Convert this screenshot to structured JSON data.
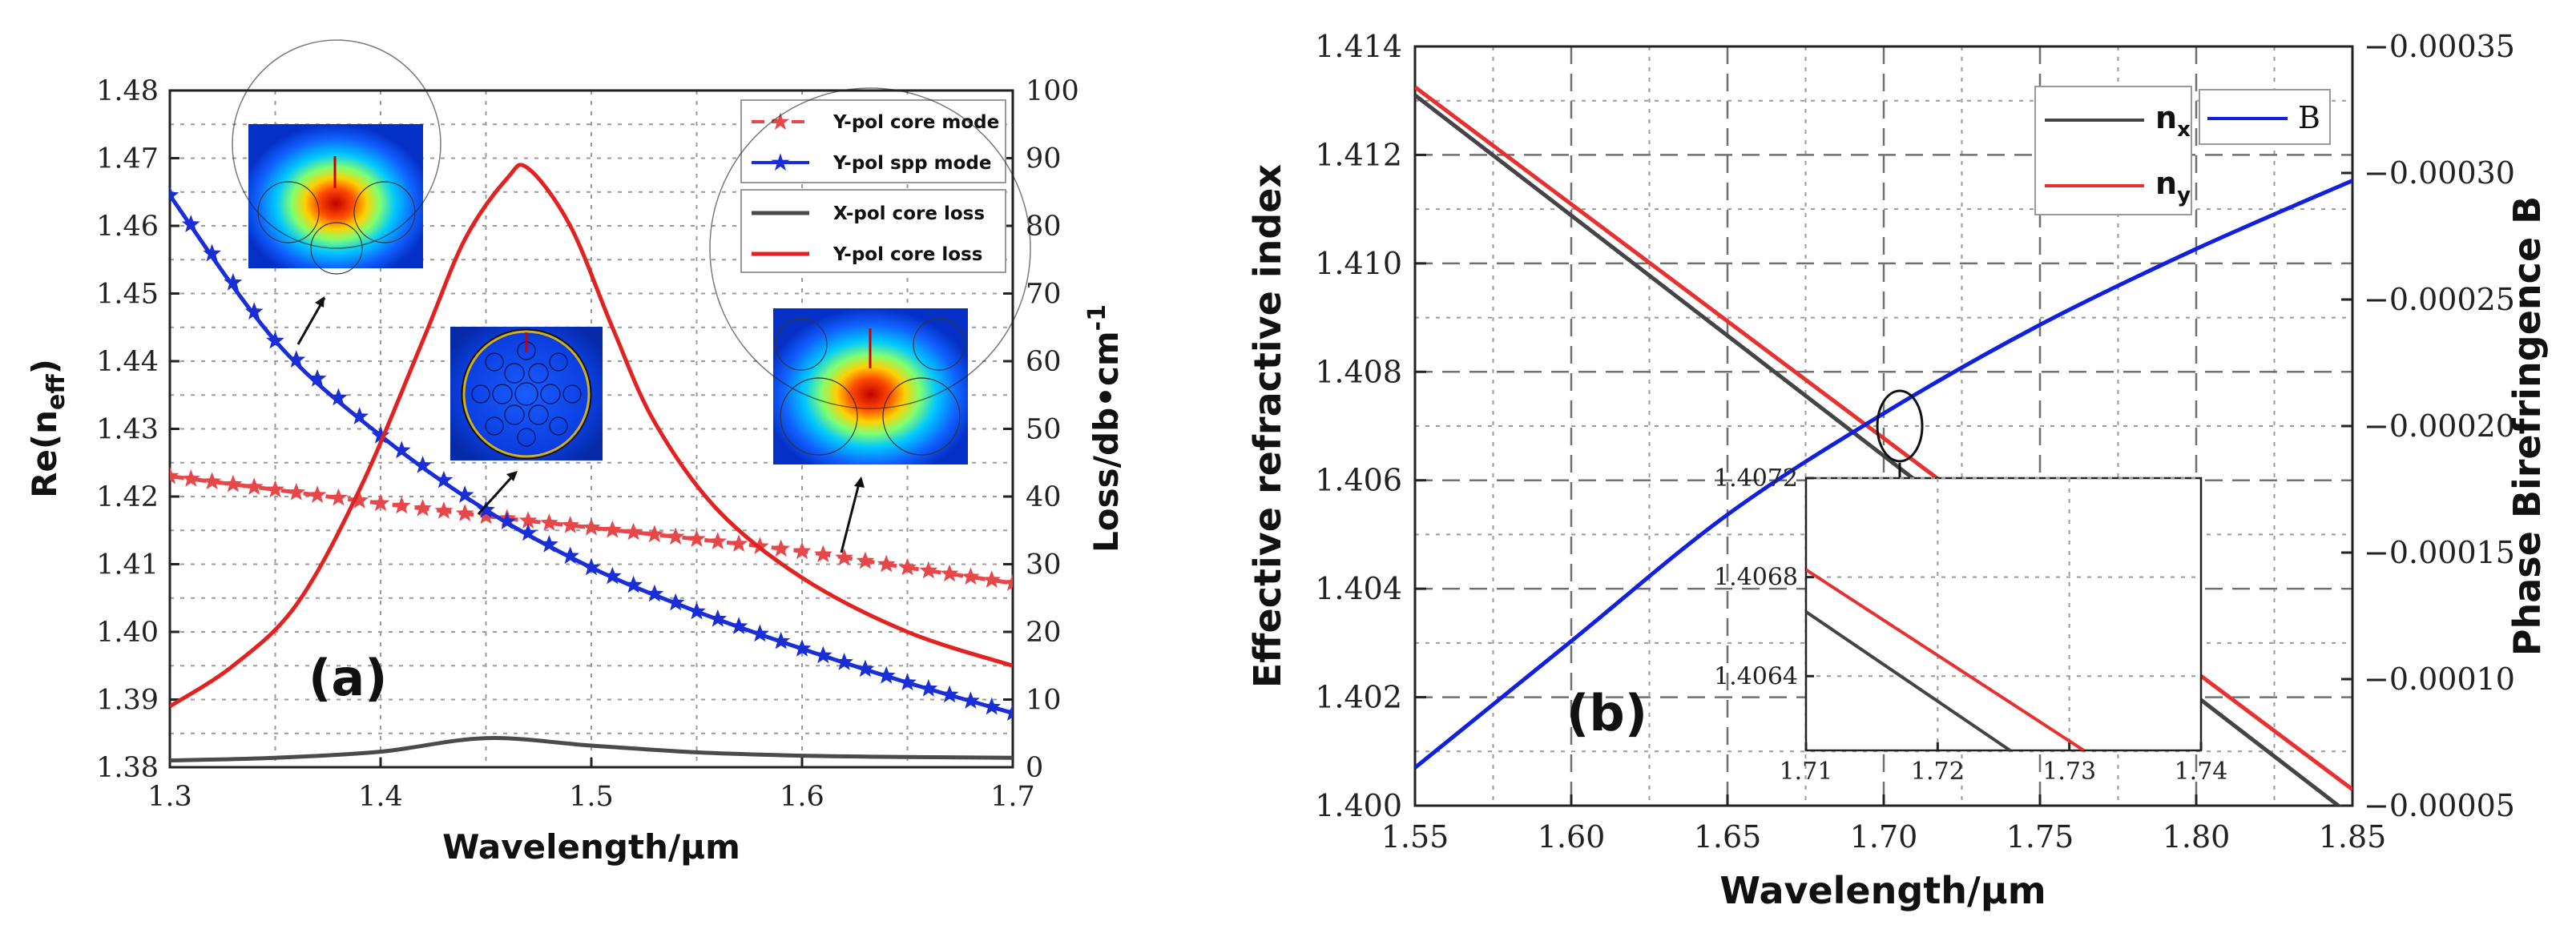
{
  "chart_data": [
    {
      "type": "line",
      "panel_label": "(a)",
      "xlabel": "Wavelength/μm",
      "ylabel_left": "Re(n",
      "ylabel_left_sub": "eff",
      "ylabel_left_close": ")",
      "ylabel_right": "Loss/db•cm",
      "ylabel_right_sup": "-1",
      "xlim": [
        1.3,
        1.7
      ],
      "ylim_left": [
        1.38,
        1.48
      ],
      "ylim_right": [
        0,
        100
      ],
      "x_ticks": [
        "1.3",
        "1.4",
        "1.5",
        "1.6",
        "1.7"
      ],
      "y_ticks_left": [
        "1.38",
        "1.39",
        "1.40",
        "1.41",
        "1.42",
        "1.43",
        "1.44",
        "1.45",
        "1.46",
        "1.47",
        "1.48"
      ],
      "y_ticks_right": [
        "0",
        "10",
        "20",
        "30",
        "40",
        "50",
        "60",
        "70",
        "80",
        "90",
        "100"
      ],
      "grid": true,
      "legend_position": "top-right",
      "series": [
        {
          "name": "Y-pol core mode",
          "axis": "left",
          "color": "#e8474a",
          "style": "dashed-star",
          "x": [
            1.3,
            1.35,
            1.4,
            1.45,
            1.5,
            1.55,
            1.6,
            1.65,
            1.7
          ],
          "values": [
            1.423,
            1.421,
            1.419,
            1.4171,
            1.4154,
            1.4137,
            1.4119,
            1.4095,
            1.4072
          ]
        },
        {
          "name": "Y-pol spp mode",
          "axis": "left",
          "color": "#1a2ed8",
          "style": "solid-star",
          "x": [
            1.3,
            1.35,
            1.4,
            1.45,
            1.5,
            1.55,
            1.6,
            1.65,
            1.7
          ],
          "values": [
            1.4645,
            1.443,
            1.429,
            1.418,
            1.4095,
            1.403,
            1.3975,
            1.3925,
            1.388
          ]
        },
        {
          "name": "X-pol core loss",
          "axis": "right",
          "color": "#4a4a4a",
          "style": "solid",
          "x": [
            1.3,
            1.35,
            1.4,
            1.45,
            1.5,
            1.55,
            1.6,
            1.65,
            1.7
          ],
          "values": [
            1.0,
            1.4,
            2.3,
            4.3,
            3.2,
            2.2,
            1.7,
            1.5,
            1.4
          ]
        },
        {
          "name": "Y-pol core loss",
          "axis": "right",
          "color": "#e32121",
          "style": "solid",
          "x": [
            1.3,
            1.33,
            1.36,
            1.39,
            1.42,
            1.44,
            1.46,
            1.47,
            1.49,
            1.51,
            1.53,
            1.56,
            1.6,
            1.65,
            1.7
          ],
          "values": [
            9,
            15,
            24,
            41,
            63,
            78,
            87,
            88.5,
            80,
            65,
            51,
            38,
            28,
            20,
            15
          ]
        }
      ],
      "insets": [
        {
          "description_icon": "mode-field-heatmap-icon"
        },
        {
          "description_icon": "mode-field-heatmap-icon"
        },
        {
          "description_icon": "mode-field-heatmap-icon"
        }
      ]
    },
    {
      "type": "line",
      "panel_label": "(b)",
      "xlabel": "Wavelength/μm",
      "ylabel_left": "Effective refractive index",
      "ylabel_right": "Phase Birefringence B",
      "xlim": [
        1.55,
        1.85
      ],
      "ylim_left": [
        1.4,
        1.414
      ],
      "ylim_right": [
        -5e-05,
        -0.00035
      ],
      "x_ticks": [
        "1.55",
        "1.60",
        "1.65",
        "1.70",
        "1.75",
        "1.80",
        "1.85"
      ],
      "y_ticks_left": [
        "1.400",
        "1.402",
        "1.404",
        "1.406",
        "1.408",
        "1.410",
        "1.412",
        "1.414"
      ],
      "y_ticks_right": [
        "−0.00005",
        "−0.00010",
        "−0.00015",
        "−0.00020",
        "−0.00025",
        "−0.00030",
        "−0.00035"
      ],
      "grid": true,
      "legend_position": "top-right",
      "series": [
        {
          "name": "n",
          "name_sub": "x",
          "axis": "left",
          "color": "#444444",
          "x": [
            1.55,
            1.85
          ],
          "values": [
            1.4131,
            1.3998
          ]
        },
        {
          "name": "n",
          "name_sub": "y",
          "axis": "left",
          "color": "#e83030",
          "x": [
            1.55,
            1.85
          ],
          "values": [
            1.41325,
            1.4003
          ]
        },
        {
          "name": "B",
          "axis": "right",
          "color": "#1020e0",
          "x": [
            1.55,
            1.6,
            1.65,
            1.7,
            1.75,
            1.8,
            1.85
          ],
          "values": [
            -6.5e-05,
            -0.000115,
            -0.000165,
            -0.000205,
            -0.00024,
            -0.00027,
            -0.000297
          ]
        }
      ],
      "inset": {
        "xlim": [
          1.71,
          1.74
        ],
        "ylim": [
          1.4061,
          1.4072
        ],
        "x_ticks": [
          "1.71",
          "1.72",
          "1.73",
          "1.74"
        ],
        "y_ticks": [
          "1.4064",
          "1.4068",
          "1.4072"
        ],
        "series": [
          {
            "name": "n",
            "name_sub": "x",
            "color": "#444444",
            "x": [
              1.71,
              1.7255
            ],
            "values": [
              1.40666,
              1.4061
            ]
          },
          {
            "name": "n",
            "name_sub": "y",
            "color": "#e83030",
            "x": [
              1.71,
              1.7311
            ],
            "values": [
              1.40683,
              1.4061
            ]
          }
        ]
      }
    }
  ],
  "colors": {
    "grid": "#9a9a9a",
    "frame": "#222222"
  }
}
